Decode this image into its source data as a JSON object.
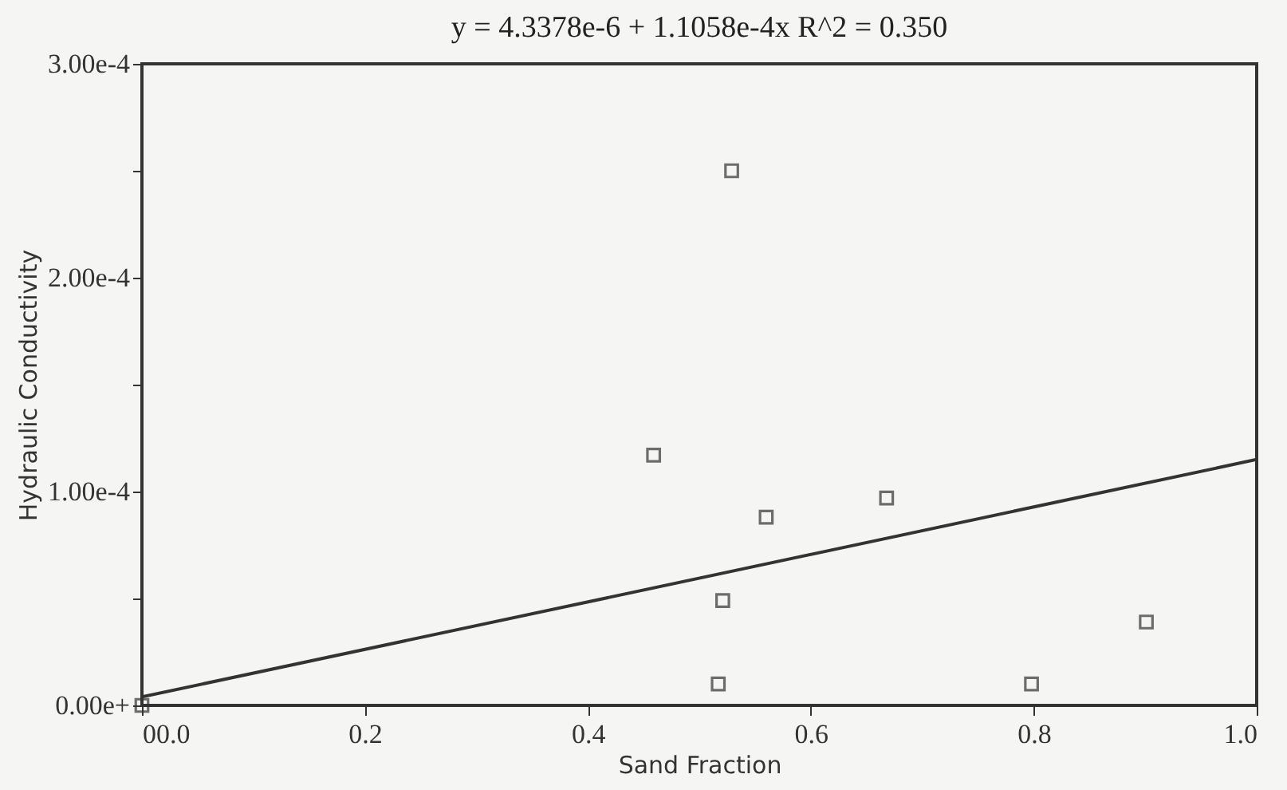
{
  "chart_data": {
    "type": "scatter",
    "title": "y = 4.3378e-6 + 1.1058e-4x    R^2 = 0.350",
    "xlabel": "Sand Fraction",
    "ylabel": "Hydraulic Conductivity",
    "series": [
      {
        "color": "#333333",
        "x": [
          0.0,
          0.459,
          0.517,
          0.521,
          0.529,
          0.56,
          0.668,
          0.798,
          0.901
        ],
        "values": [
          0.0,
          0.000117,
          1e-05,
          4.9e-05,
          0.00025,
          8.8e-05,
          9.7e-05,
          1e-05,
          3.9e-05
        ]
      },
      {
        "type": "line",
        "color": "#333333",
        "marker": "none",
        "x": [
          0.0,
          1.0
        ],
        "values": [
          4e-06,
          0.000115
        ]
      }
    ],
    "xlim": [
      0.0,
      1.0
    ],
    "ylim": [
      0.0,
      0.0003
    ],
    "xticks": [
      {
        "value": 0.0,
        "label": "00.0"
      },
      0.2,
      0.4,
      0.6,
      0.8,
      {
        "value": 1.0,
        "label": "1.0"
      }
    ],
    "yticks": [
      {
        "value": 0.0,
        "label": "0.00e+"
      },
      {
        "value": 5e-05,
        "label": null
      },
      {
        "value": 0.0001,
        "label": "1.00e-4"
      },
      {
        "value": 0.00015,
        "label": null
      },
      {
        "value": 0.0002,
        "label": "2.00e-4"
      },
      {
        "value": 0.00025,
        "label": null
      },
      {
        "value": 0.0003,
        "label": "3.00e-4"
      }
    ],
    "marker": "square",
    "line_style": "solid",
    "grid": false
  }
}
